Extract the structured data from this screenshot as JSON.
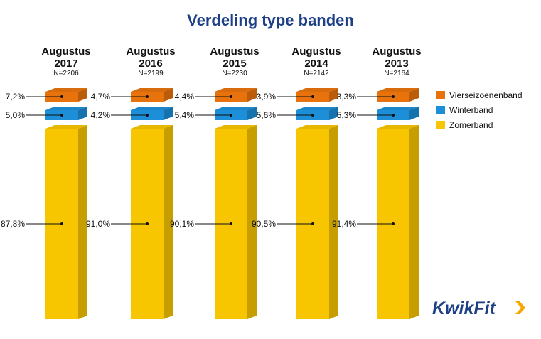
{
  "title": "Verdeling type banden",
  "columns": [
    {
      "line1": "Augustus",
      "line2": "2017",
      "n": "N=2206"
    },
    {
      "line1": "Augustus",
      "line2": "2016",
      "n": "N=2199"
    },
    {
      "line1": "Augustus",
      "line2": "2015",
      "n": "N=2230"
    },
    {
      "line1": "Augustus",
      "line2": "2014",
      "n": "N=2142"
    },
    {
      "line1": "Augustus",
      "line2": "2013",
      "n": "N=2164"
    }
  ],
  "legend": [
    {
      "label": "Vierseizoenenband",
      "color": "#e8730c"
    },
    {
      "label": "Winterband",
      "color": "#1c8fd8"
    },
    {
      "label": "Zomerband",
      "color": "#f7c600"
    }
  ],
  "logo_text": "KwikFit",
  "chart_data": {
    "type": "bar",
    "title": "Verdeling type banden",
    "categories": [
      "Augustus 2017",
      "Augustus 2016",
      "Augustus 2015",
      "Augustus 2014",
      "Augustus 2013"
    ],
    "series": [
      {
        "name": "Vierseizoenenband",
        "values": [
          7.2,
          4.7,
          4.4,
          3.9,
          3.3
        ],
        "labels": [
          "7,2%",
          "4,7%",
          "4,4%",
          "3,9%",
          "3,3%"
        ],
        "color": "#e8730c"
      },
      {
        "name": "Winterband",
        "values": [
          5.0,
          4.2,
          5.4,
          5.6,
          5.3
        ],
        "labels": [
          "5,0%",
          "4,2%",
          "5,4%",
          "5,6%",
          "5,3%"
        ],
        "color": "#1c8fd8"
      },
      {
        "name": "Zomerband",
        "values": [
          87.8,
          91.0,
          90.1,
          90.5,
          91.4
        ],
        "labels": [
          "87,8%",
          "91,0%",
          "90,1%",
          "90,5%",
          "91,4%"
        ],
        "color": "#f7c600"
      }
    ],
    "legend_position": "right",
    "grid": false
  }
}
